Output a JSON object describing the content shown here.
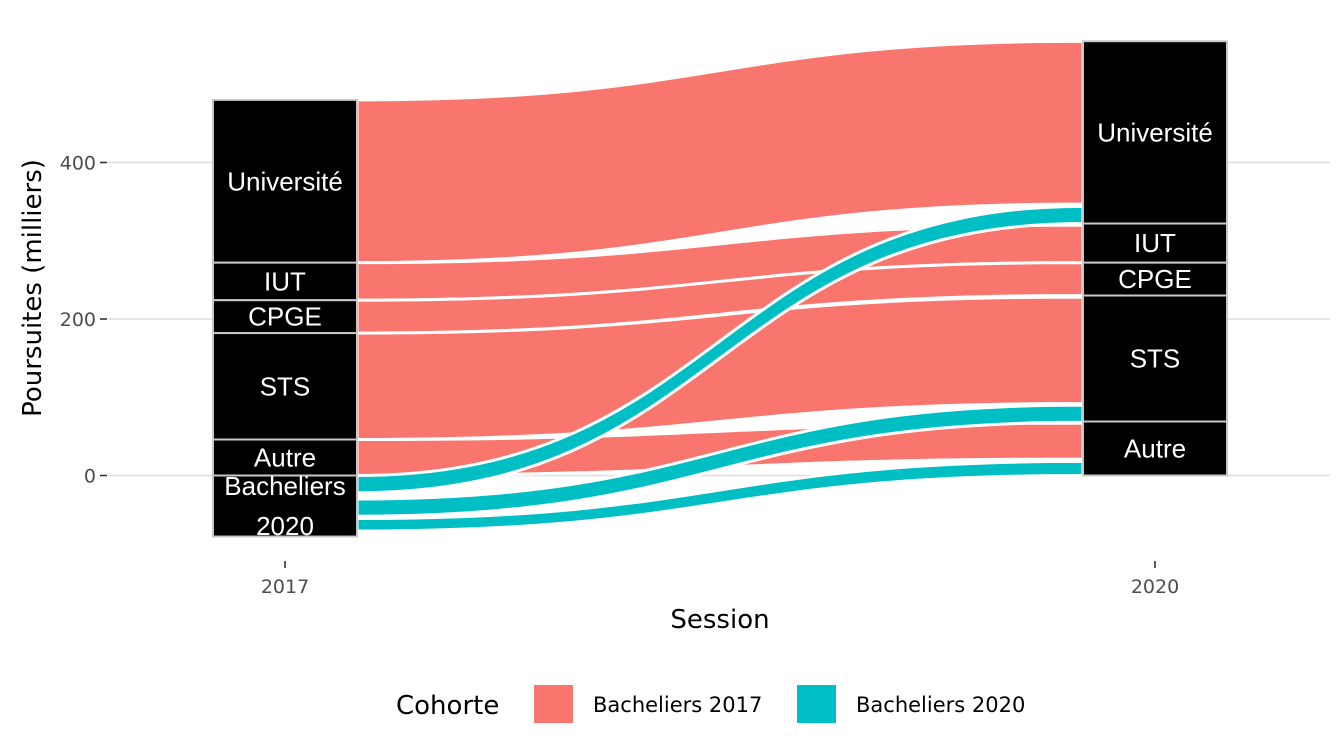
{
  "chart_data": {
    "type": "alluvial",
    "xlabel": "Session",
    "ylabel": "Poursuites (milliers)",
    "x": [
      "2017",
      "2020"
    ],
    "ylim": [
      -78,
      555
    ],
    "yticks": [
      0,
      200,
      400
    ],
    "grid": true,
    "legend": {
      "title": "Cohorte",
      "position": "bottom",
      "items": [
        {
          "label": "Bacheliers 2017",
          "color": "#F8766D"
        },
        {
          "label": "Bacheliers 2020",
          "color": "#00BFC4"
        }
      ]
    },
    "strata": {
      "2017": [
        {
          "label": "Université",
          "bottom": 272,
          "top": 480
        },
        {
          "label": "IUT",
          "bottom": 224,
          "top": 272
        },
        {
          "label": "CPGE",
          "bottom": 182,
          "top": 224
        },
        {
          "label": "STS",
          "bottom": 46,
          "top": 182
        },
        {
          "label": "Autre",
          "bottom": 0,
          "top": 46
        },
        {
          "label": "Bacheliers\n2020",
          "bottom": -78,
          "top": 0
        }
      ],
      "2020": [
        {
          "label": "Université",
          "bottom": 322,
          "top": 555
        },
        {
          "label": "IUT",
          "bottom": 272,
          "top": 322
        },
        {
          "label": "CPGE",
          "bottom": 230,
          "top": 272
        },
        {
          "label": "STS",
          "bottom": 69,
          "top": 230
        },
        {
          "label": "Autre",
          "bottom": 0,
          "top": 69
        }
      ]
    },
    "flows": [
      {
        "cohort": "Bacheliers 2017",
        "from": "Université",
        "to": "Université",
        "y0": [
          272,
          480
        ],
        "y1": [
          347,
          555
        ]
      },
      {
        "cohort": "Bacheliers 2017",
        "from": "IUT",
        "to": "IUT",
        "y0": [
          224,
          272
        ],
        "y1": [
          272,
          320
        ]
      },
      {
        "cohort": "Bacheliers 2017",
        "from": "CPGE",
        "to": "CPGE",
        "y0": [
          182,
          224
        ],
        "y1": [
          230,
          272
        ]
      },
      {
        "cohort": "Bacheliers 2017",
        "from": "STS",
        "to": "STS",
        "y0": [
          46,
          182
        ],
        "y1": [
          92,
          228
        ]
      },
      {
        "cohort": "Bacheliers 2017",
        "from": "Autre",
        "to": "Autre",
        "y0": [
          0,
          46
        ],
        "y1": [
          21,
          67
        ]
      },
      {
        "cohort": "Bacheliers 2020",
        "from": "Bacheliers 2020",
        "to": "Université",
        "y0": [
          -22,
          0
        ],
        "y1": [
          322,
          344
        ]
      },
      {
        "cohort": "Bacheliers 2020",
        "from": "Bacheliers 2020",
        "to": "STS",
        "y0": [
          -52,
          -30
        ],
        "y1": [
          68,
          90
        ]
      },
      {
        "cohort": "Bacheliers 2020",
        "from": "Bacheliers 2020",
        "to": "Autre",
        "y0": [
          -71,
          -55
        ],
        "y1": [
          0,
          18
        ]
      }
    ]
  }
}
